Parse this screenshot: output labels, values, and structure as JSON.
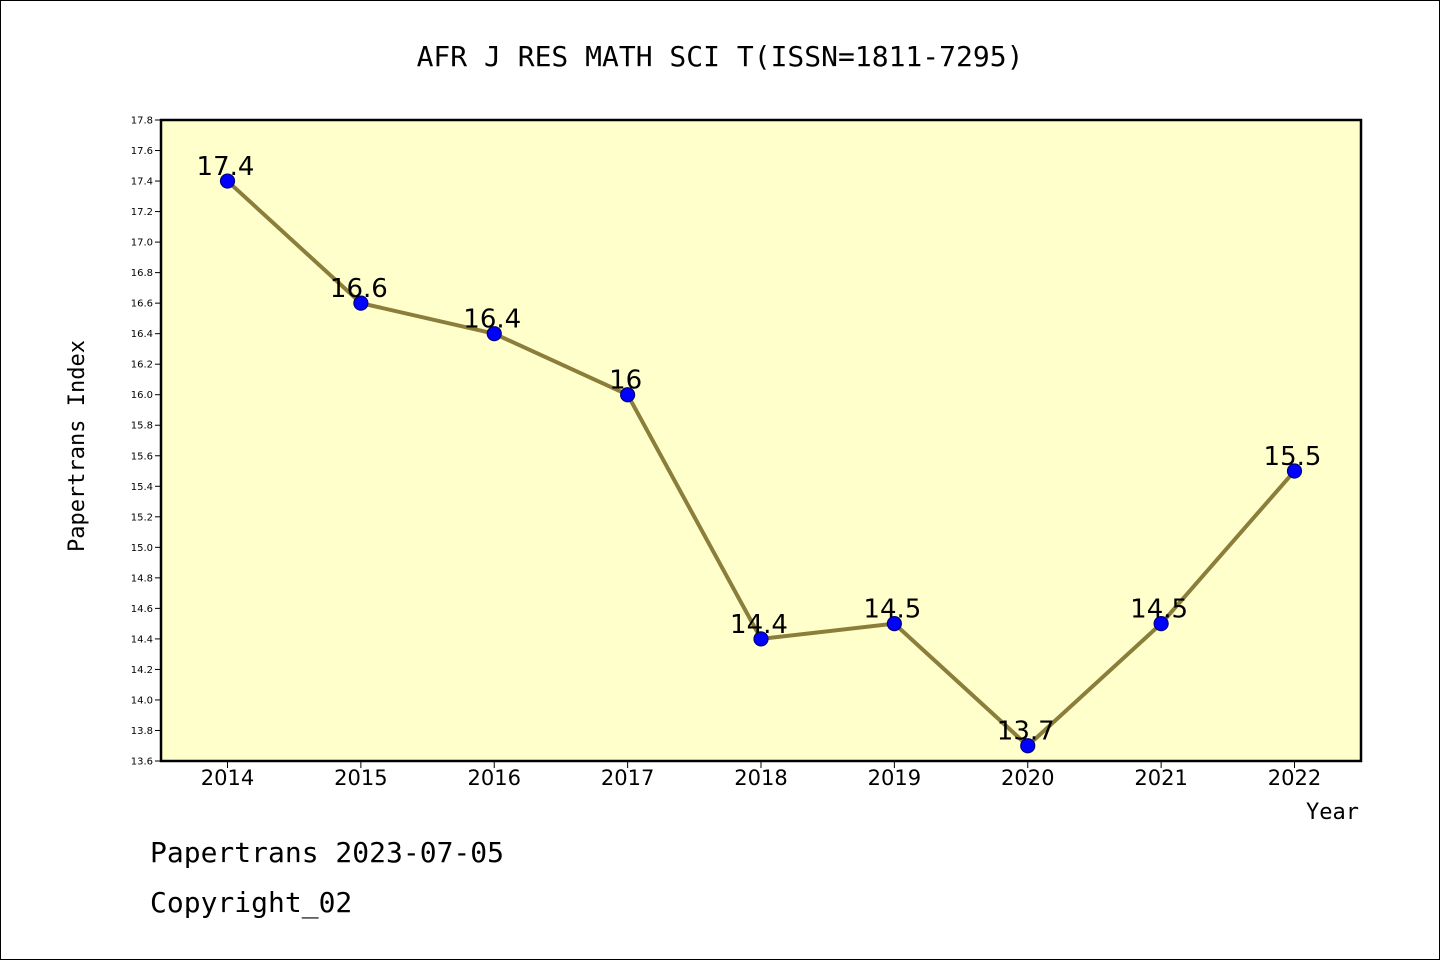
{
  "chart_data": {
    "type": "line",
    "title": "AFR J RES MATH SCI T(ISSN=1811-7295)",
    "xlabel": "Year",
    "ylabel": "Papertrans Index",
    "categories": [
      "2014",
      "2015",
      "2016",
      "2017",
      "2018",
      "2019",
      "2020",
      "2021",
      "2022"
    ],
    "values": [
      17.4,
      16.6,
      16.4,
      16.0,
      14.4,
      14.5,
      13.7,
      14.5,
      15.5
    ],
    "data_labels": [
      "17.4",
      "16.6",
      "16.4",
      "16",
      "14.4",
      "14.5",
      "13.7",
      "14.5",
      "15.5"
    ],
    "ylim": [
      13.6,
      17.8
    ],
    "yticks": [
      "13.6",
      "13.8",
      "14.0",
      "14.2",
      "14.4",
      "14.6",
      "14.8",
      "15.0",
      "15.2",
      "15.4",
      "15.6",
      "15.8",
      "16.0",
      "16.2",
      "16.4",
      "16.6",
      "16.8",
      "17.0",
      "17.2",
      "17.4",
      "17.6",
      "17.8"
    ],
    "grid": false,
    "colors": {
      "plot_background": "#ffffcc",
      "line": "#8b7d3a",
      "marker_fill": "#0000ff",
      "marker_edge": "#000080"
    }
  },
  "footer": {
    "line1": "Papertrans 2023-07-05",
    "line2": "Copyright_02"
  }
}
